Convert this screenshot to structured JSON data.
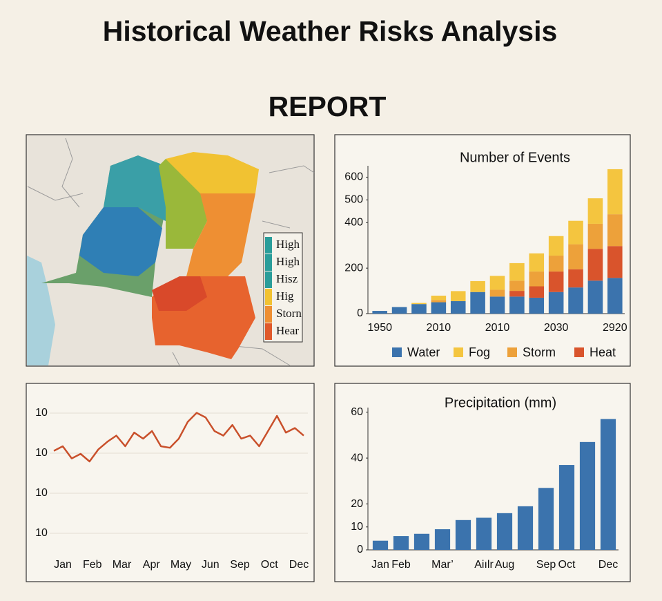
{
  "title": "Historical Weather Risks Analysis",
  "subtitle": "REPORT",
  "map": {
    "legend": [
      {
        "label": "High",
        "color": "#2a9d9a"
      },
      {
        "label": "High",
        "color": "#2a9d9a"
      },
      {
        "label": "Hisz",
        "color": "#2a9d9a"
      },
      {
        "label": "Hig",
        "color": "#f1c232"
      },
      {
        "label": "Storn",
        "color": "#ee8f33"
      },
      {
        "label": "Hear",
        "color": "#e05a2b"
      }
    ]
  },
  "chart_data": [
    {
      "type": "stacked_bar",
      "title": "Number of Events",
      "categories": [
        "1950",
        null,
        null,
        "2010",
        null,
        null,
        "2010",
        null,
        null,
        "2030",
        null,
        null,
        "2920"
      ],
      "series": [
        {
          "name": "Water",
          "color": "#3b73ad",
          "values": [
            12,
            29,
            42,
            50,
            55,
            95,
            75,
            75,
            70,
            95,
            115,
            145,
            157
          ]
        },
        {
          "name": "Fog",
          "color": "#f4c53f",
          "values": [
            0,
            0,
            5,
            19,
            44,
            48,
            61,
            77,
            80,
            86,
            103,
            112,
            198
          ]
        },
        {
          "name": "Storm",
          "color": "#eda13a",
          "values": [
            0,
            0,
            0,
            10,
            0,
            0,
            30,
            45,
            65,
            70,
            110,
            110,
            140
          ]
        },
        {
          "name": "Heat",
          "color": "#d9542c",
          "values": [
            0,
            0,
            0,
            0,
            0,
            0,
            0,
            25,
            50,
            90,
            80,
            140,
            140
          ]
        }
      ],
      "ylim": [
        0,
        650
      ],
      "yticks": [
        0,
        200,
        400,
        500,
        600
      ],
      "legend": "bottom"
    },
    {
      "type": "line",
      "color": "#c9502b",
      "values": [
        67,
        70,
        62,
        65,
        60,
        68,
        73,
        77,
        70,
        79,
        75,
        80,
        70,
        69,
        75,
        86,
        92,
        89,
        80,
        77,
        84,
        75,
        77,
        70,
        80,
        90,
        79,
        82,
        77
      ],
      "ylim": [
        0,
        100
      ],
      "ytick_labels": [
        "10",
        "10",
        "10",
        "10"
      ],
      "xtick_labels": [
        "Jan",
        "Feb",
        "Mar",
        "Apr",
        "May",
        "Jun",
        "Sep",
        "Oct",
        "Dec"
      ],
      "grid": true
    },
    {
      "type": "bar",
      "title": "Precipitation (mm)",
      "color": "#3b73ad",
      "categories": [
        "Jan",
        "Feb",
        null,
        "Mar’",
        null,
        "Aiılr",
        "Aug",
        null,
        "Sep",
        "Oct",
        null,
        "Dec"
      ],
      "values": [
        4,
        6,
        7,
        9,
        13,
        14,
        16,
        19,
        27,
        37,
        47,
        57
      ],
      "ylim": [
        0,
        62
      ],
      "yticks": [
        0,
        10,
        20,
        40,
        60
      ]
    }
  ]
}
